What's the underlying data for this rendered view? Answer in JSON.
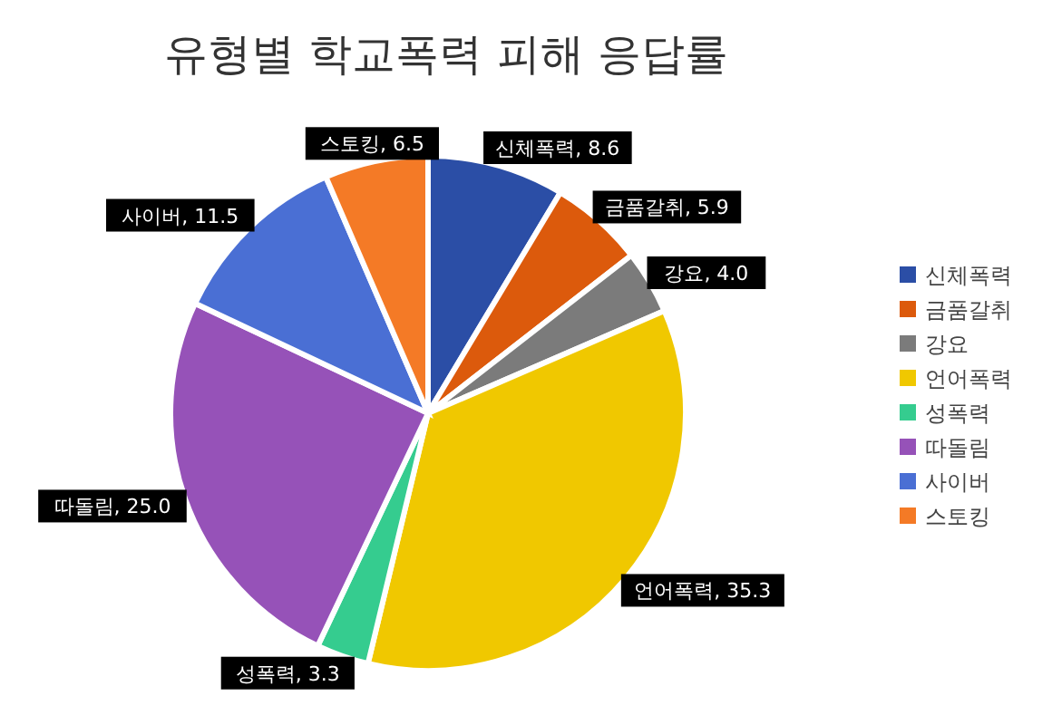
{
  "chart_data": {
    "type": "pie",
    "title": "유형별 학교폭력 피해 응답률",
    "categories": [
      "신체폭력",
      "금품갈취",
      "강요",
      "언어폭력",
      "성폭력",
      "따돌림",
      "사이버",
      "스토킹"
    ],
    "values": [
      8.6,
      5.9,
      4.0,
      35.3,
      3.3,
      25.0,
      11.5,
      6.5
    ],
    "colors": [
      "#2b4ea6",
      "#dc5a0c",
      "#7b7b7b",
      "#f0c800",
      "#35cc8f",
      "#9652b8",
      "#4a6fd4",
      "#f47a26"
    ],
    "value_labels": [
      "신체폭력, 8.6",
      "금품갈취, 5.9",
      "강요, 4.0",
      "언어폭력, 35.3",
      "성폭력, 3.3",
      "따돌림, 25.0",
      "사이버, 11.5",
      "스토킹, 6.5"
    ],
    "legend": "right"
  }
}
